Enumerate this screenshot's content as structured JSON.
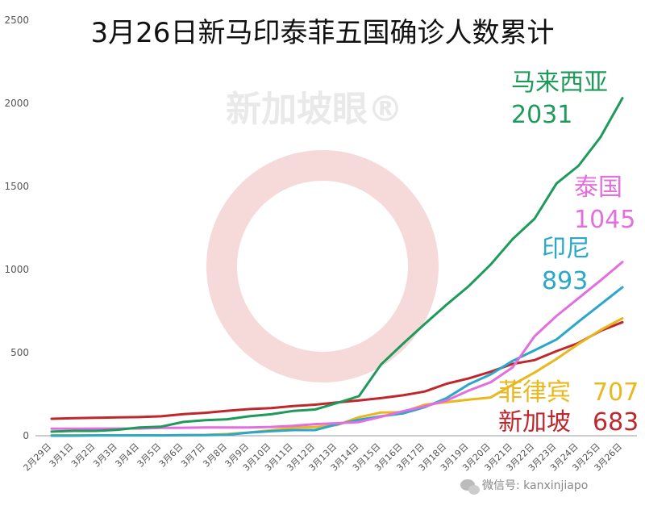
{
  "chart_data": {
    "type": "line",
    "title": "3月26日新马印泰菲五国确诊人数累计",
    "ylim": [
      0,
      2500
    ],
    "yticks": [
      0,
      500,
      1000,
      1500,
      2000,
      2500
    ],
    "grid": false,
    "x": [
      "2月29日",
      "3月1日",
      "3月2日",
      "3月3日",
      "3月4日",
      "3月5日",
      "3月6日",
      "3月7日",
      "3月8日",
      "3月9日",
      "3月10日",
      "3月11日",
      "3月12日",
      "3月13日",
      "3月14日",
      "3月15日",
      "3月16日",
      "3月17日",
      "3月18日",
      "3月19日",
      "3月20日",
      "3月21日",
      "3月22日",
      "3月23日",
      "3月24日",
      "3月25日",
      "3月26日"
    ],
    "series": [
      {
        "name": "马来西亚",
        "label": "2031",
        "color": "#1e9a5a",
        "values": [
          25,
          29,
          29,
          36,
          50,
          55,
          83,
          93,
          99,
          117,
          129,
          149,
          158,
          197,
          238,
          428,
          553,
          673,
          790,
          900,
          1030,
          1183,
          1306,
          1518,
          1624,
          1796,
          2031
        ]
      },
      {
        "name": "泰国",
        "label": "1045",
        "color": "#e36fde",
        "values": [
          42,
          42,
          43,
          43,
          43,
          47,
          48,
          50,
          50,
          50,
          53,
          59,
          70,
          75,
          82,
          114,
          147,
          177,
          212,
          272,
          322,
          411,
          599,
          721,
          827,
          934,
          1045
        ]
      },
      {
        "name": "印尼",
        "label": "893",
        "color": "#2aa7c9",
        "values": [
          0,
          0,
          2,
          2,
          2,
          2,
          4,
          4,
          6,
          19,
          27,
          34,
          34,
          69,
          96,
          117,
          134,
          172,
          227,
          309,
          369,
          450,
          514,
          579,
          686,
          790,
          893
        ]
      },
      {
        "name": "菲律宾",
        "label": "707",
        "color": "#e8b81e",
        "values": [
          3,
          3,
          3,
          3,
          3,
          3,
          3,
          5,
          10,
          20,
          33,
          49,
          52,
          64,
          111,
          140,
          142,
          187,
          202,
          217,
          230,
          307,
          380,
          462,
          552,
          636,
          707
        ]
      },
      {
        "name": "新加坡",
        "label": "683",
        "color": "#c0272d",
        "values": [
          102,
          106,
          108,
          110,
          112,
          117,
          130,
          138,
          150,
          160,
          166,
          178,
          187,
          200,
          212,
          226,
          243,
          266,
          313,
          345,
          385,
          432,
          455,
          509,
          558,
          631,
          683
        ]
      }
    ],
    "annotations": [
      {
        "series": "马来西亚",
        "name": "马来西亚",
        "value": "2031"
      },
      {
        "series": "泰国",
        "name": "泰国",
        "value": "1045"
      },
      {
        "series": "印尼",
        "name": "印尼",
        "value": "893"
      },
      {
        "series": "菲律宾",
        "name": "菲律宾",
        "value": "707"
      },
      {
        "series": "新加坡",
        "name": "新加坡",
        "value": "683"
      }
    ]
  },
  "watermark": {
    "text": "新加坡眼®"
  },
  "footer": {
    "icon": "wechat-icon",
    "text": "微信号: kanxinjiapo"
  }
}
